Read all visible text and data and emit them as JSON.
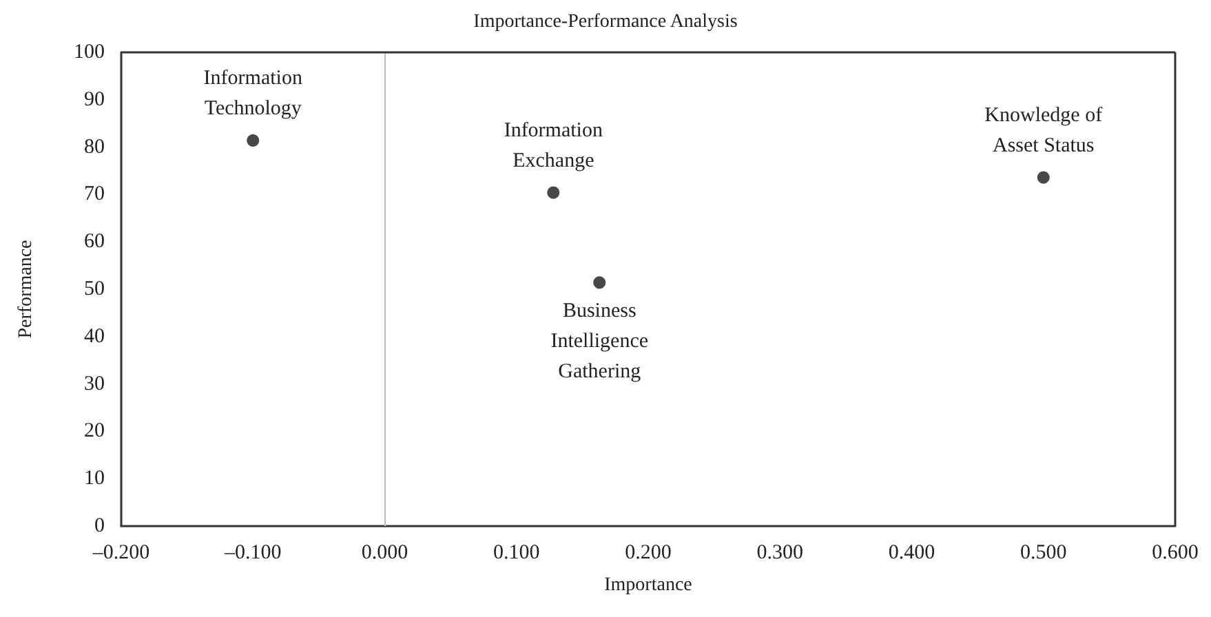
{
  "chart_data": {
    "type": "scatter",
    "title": "Importance-Performance Analysis",
    "xlabel": "Importance",
    "ylabel": "Performance",
    "x": [
      -0.1,
      0.128,
      0.163,
      0.5
    ],
    "series": [
      {
        "color": "#1a1a1a",
        "values": [
          81.4,
          70.4,
          51.4,
          73.6
        ]
      }
    ],
    "xlim": [
      -0.2,
      0.6
    ],
    "xticks": [
      {
        "value": -0.2,
        "label": "–0.200"
      },
      {
        "value": -0.1,
        "label": "–0.100"
      },
      {
        "value": 0,
        "label": "0.000"
      },
      {
        "value": 0.1,
        "label": "0.100"
      },
      {
        "value": 0.2,
        "label": "0.200"
      },
      {
        "value": 0.3,
        "label": "0.300"
      },
      {
        "value": 0.4,
        "label": "0.400"
      },
      {
        "value": 0.5,
        "label": "0.500"
      },
      {
        "value": 0.6,
        "label": "0.600"
      }
    ],
    "ylim": [
      0,
      100
    ],
    "yticks": [
      0,
      10,
      20,
      30,
      40,
      50,
      60,
      70,
      80,
      90,
      100
    ],
    "ref_lines": [
      {
        "axis": "x",
        "value": 0,
        "color": "#bfbfbf"
      }
    ],
    "annotations": [
      {
        "text": "Information\nTechnology",
        "x": -0.1,
        "y": 81.4
      },
      {
        "text": "Information\nExchange",
        "x": 0.128,
        "y": 70.4
      },
      {
        "text": "Business\nIntelligence\nGathering",
        "x": 0.163,
        "y": 51.4
      },
      {
        "text": "Knowledge of\nAsset Status",
        "x": 0.5,
        "y": 73.6
      }
    ],
    "marker": "circle",
    "grid": false
  }
}
